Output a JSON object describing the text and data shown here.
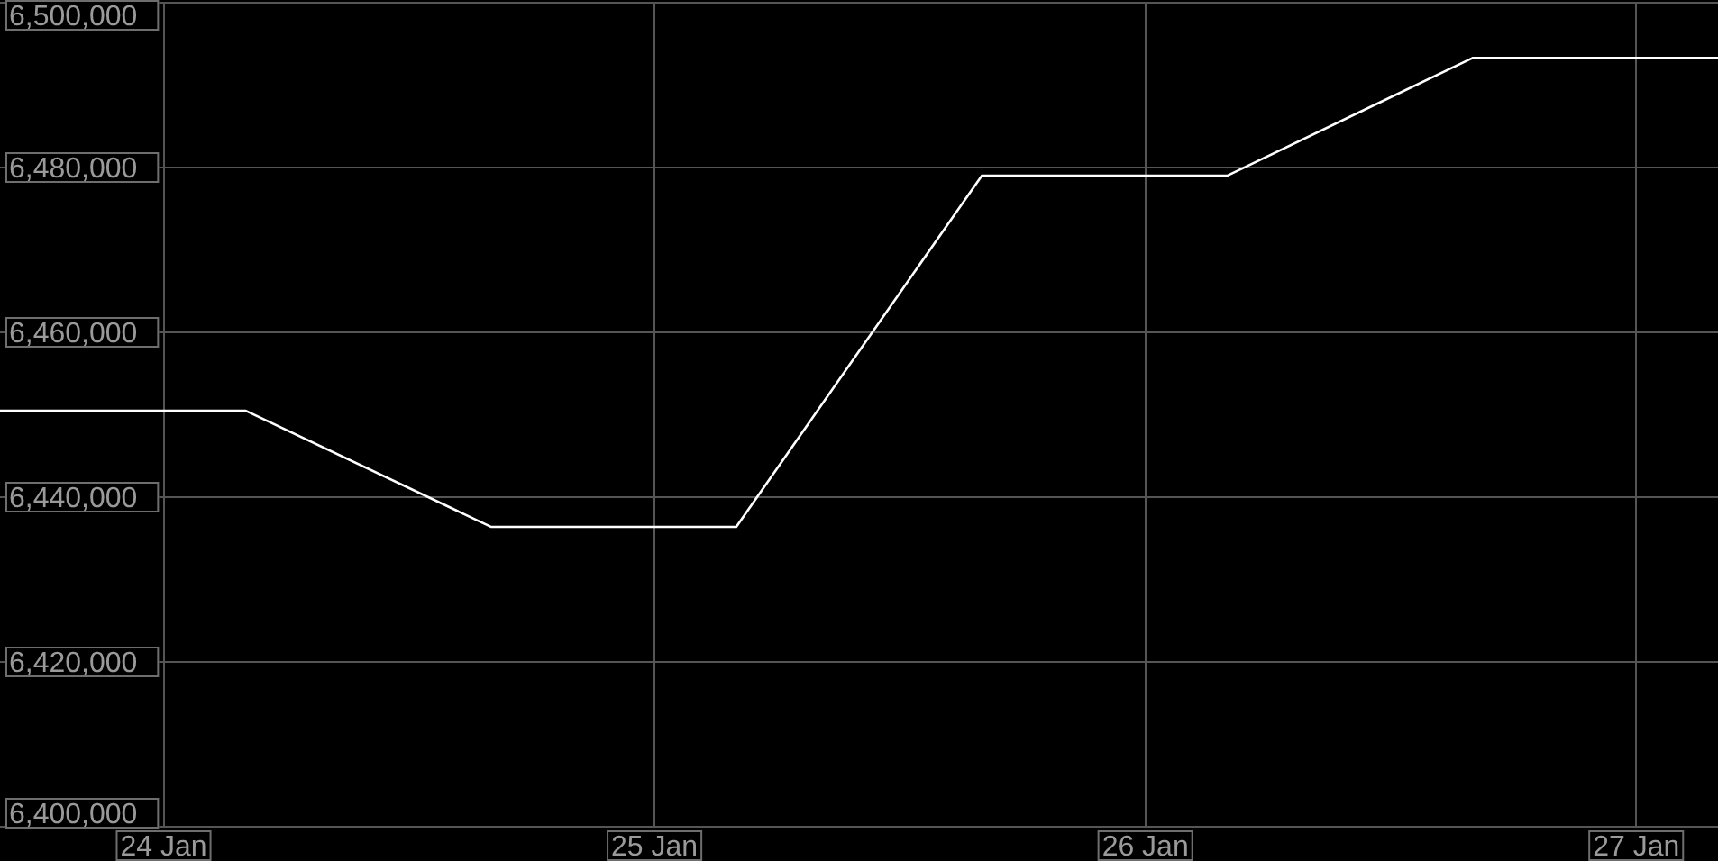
{
  "chart_data": {
    "type": "line",
    "x": [
      "--01-23T16:00",
      "--01-24T04:00",
      "--01-24T16:00",
      "--01-25T04:00",
      "--01-25T16:00",
      "--01-26T04:00",
      "--01-26T16:00",
      "--01-27T04:00"
    ],
    "series": [
      {
        "color": "#ffffff",
        "values": [
          6450500,
          6450500,
          6436400,
          6436400,
          6479000,
          6479000,
          6493300,
          6493300
        ]
      }
    ],
    "xlim": [
      "--01-23T16:00",
      "--01-27T04:00"
    ],
    "xticks": [
      {
        "value": "--01-24",
        "label": "24 Jan"
      },
      {
        "value": "--01-25",
        "label": "25 Jan"
      },
      {
        "value": "--01-26",
        "label": "26 Jan"
      },
      {
        "value": "--01-27",
        "label": "27 Jan"
      }
    ],
    "ylim": [
      6400000,
      6500000
    ],
    "yticks": [
      {
        "value": 6400000,
        "label": "6,400,000"
      },
      {
        "value": 6420000,
        "label": "6,420,000"
      },
      {
        "value": 6440000,
        "label": "6,440,000"
      },
      {
        "value": 6460000,
        "label": "6,460,000"
      },
      {
        "value": 6480000,
        "label": "6,480,000"
      },
      {
        "value": 6500000,
        "label": "6,500,000"
      }
    ],
    "grid": true,
    "legend": false
  }
}
